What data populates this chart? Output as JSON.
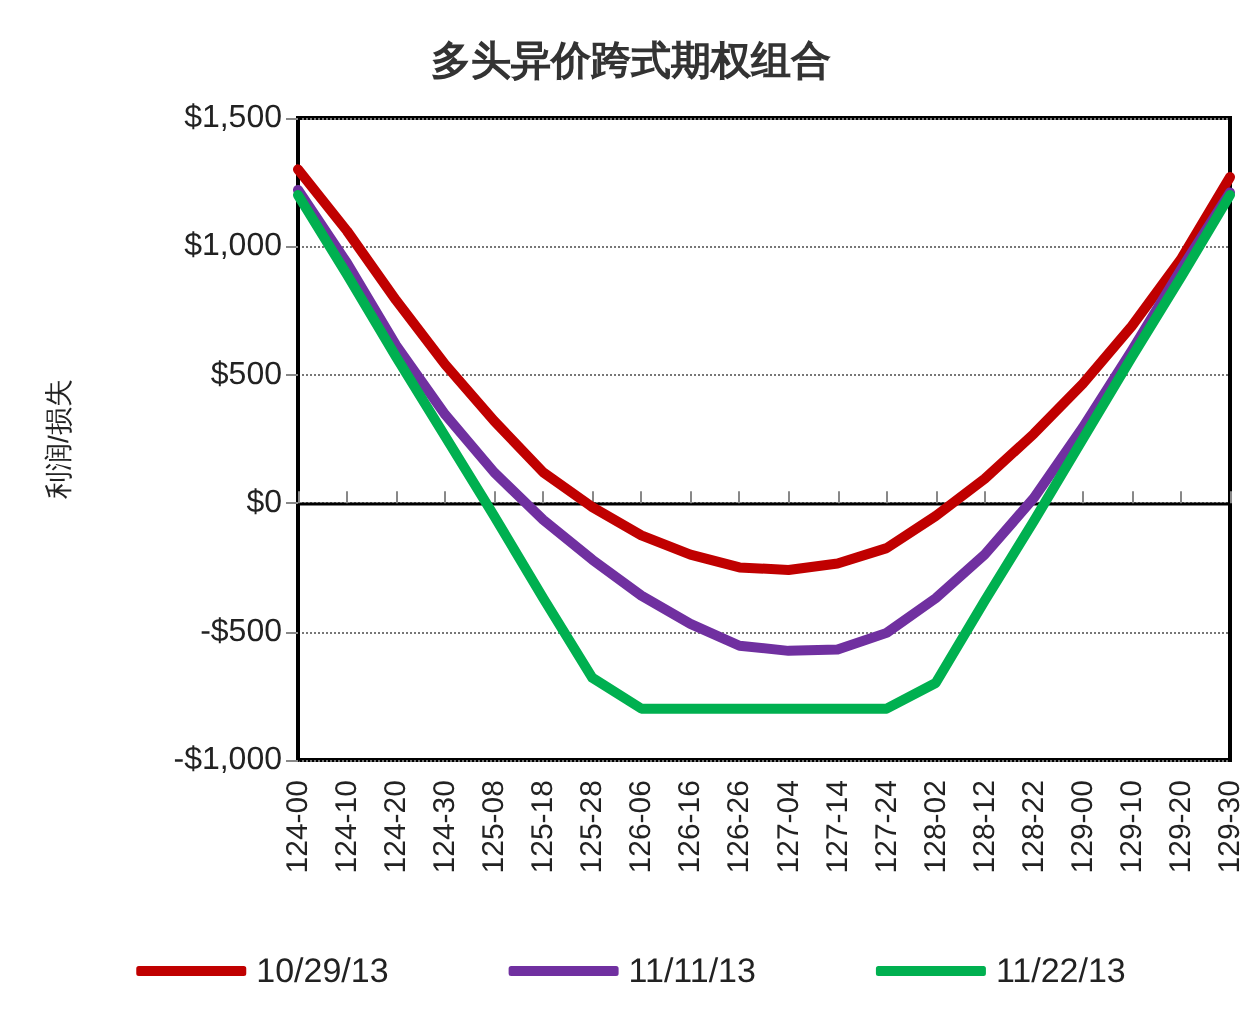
{
  "chart_data": {
    "type": "line",
    "title": "多头异价跨式期权组合",
    "ylabel": "利润/损失",
    "categories": [
      "124-00",
      "124-10",
      "124-20",
      "124-30",
      "125-08",
      "125-18",
      "125-28",
      "126-06",
      "126-16",
      "126-26",
      "127-04",
      "127-14",
      "127-24",
      "128-02",
      "128-12",
      "128-22",
      "129-00",
      "129-10",
      "129-20",
      "129-30"
    ],
    "series": [
      {
        "name": "10/29/13",
        "color": "#c00000",
        "values": [
          1300,
          1060,
          790,
          540,
          320,
          120,
          -15,
          -125,
          -200,
          -250,
          -260,
          -235,
          -175,
          -50,
          95,
          270,
          465,
          690,
          950,
          1270
        ]
      },
      {
        "name": "11/11/13",
        "color": "#7030a0",
        "values": [
          1220,
          935,
          615,
          345,
          120,
          -65,
          -220,
          -360,
          -470,
          -555,
          -575,
          -570,
          -505,
          -370,
          -200,
          20,
          295,
          595,
          910,
          1210
        ]
      },
      {
        "name": "11/22/13",
        "color": "#00b050",
        "values": [
          1200,
          890,
          570,
          260,
          -50,
          -370,
          -680,
          -800,
          -800,
          -800,
          -800,
          -800,
          -800,
          -700,
          -380,
          -70,
          250,
          570,
          880,
          1200
        ]
      }
    ],
    "ylim": [
      -1000,
      1500
    ],
    "yticks": [
      {
        "value": -1000,
        "label": "-$1,000"
      },
      {
        "value": -500,
        "label": "-$500"
      },
      {
        "value": 0,
        "label": "$0"
      },
      {
        "value": 500,
        "label": "$500"
      },
      {
        "value": 1000,
        "label": "$1,000"
      },
      {
        "value": 1500,
        "label": "$1,500"
      }
    ],
    "grid": "y",
    "legend": "bottom",
    "marker": "none",
    "line_style": "solid"
  }
}
